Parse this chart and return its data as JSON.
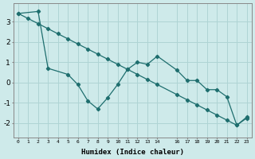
{
  "background_color": "#ceeaea",
  "grid_color": "#afd4d4",
  "line_color": "#1e6e6e",
  "xlabel": "Humidex (Indice chaleur)",
  "xlim": [
    -0.5,
    23.5
  ],
  "ylim": [
    -2.7,
    3.9
  ],
  "yticks": [
    -2,
    -1,
    0,
    1,
    2,
    3
  ],
  "xtick_positions": [
    0,
    1,
    2,
    3,
    4,
    5,
    6,
    7,
    8,
    9,
    10,
    11,
    12,
    13,
    14,
    16,
    17,
    18,
    19,
    20,
    21,
    22,
    23
  ],
  "xtick_labels": [
    "0",
    "1",
    "2",
    "3",
    "4",
    "5",
    "6",
    "7",
    "8",
    "9",
    "10",
    "11",
    "12",
    "13",
    "14",
    "16",
    "17",
    "18",
    "19",
    "20",
    "21",
    "22",
    "23"
  ],
  "straight_x": [
    0,
    1,
    2,
    3,
    4,
    5,
    6,
    7,
    8,
    9,
    10,
    11,
    12,
    13,
    14,
    16,
    17,
    18,
    19,
    20,
    21,
    22,
    23
  ],
  "straight_y": [
    3.4,
    3.15,
    2.9,
    2.65,
    2.4,
    2.15,
    1.9,
    1.65,
    1.4,
    1.15,
    0.9,
    0.65,
    0.4,
    0.15,
    -0.1,
    -0.6,
    -0.85,
    -1.1,
    -1.35,
    -1.6,
    -1.85,
    -2.1,
    -1.75
  ],
  "jagged_x": [
    0,
    2,
    3,
    5,
    6,
    7,
    8,
    9,
    10,
    11,
    12,
    13,
    14,
    16,
    17,
    18,
    19,
    20,
    21,
    22,
    23
  ],
  "jagged_y": [
    3.4,
    3.5,
    0.7,
    0.4,
    -0.1,
    -0.9,
    -1.3,
    -0.75,
    -0.1,
    0.65,
    1.0,
    0.9,
    1.3,
    0.6,
    0.1,
    0.1,
    -0.35,
    -0.35,
    -0.7,
    -2.1,
    -1.7
  ]
}
